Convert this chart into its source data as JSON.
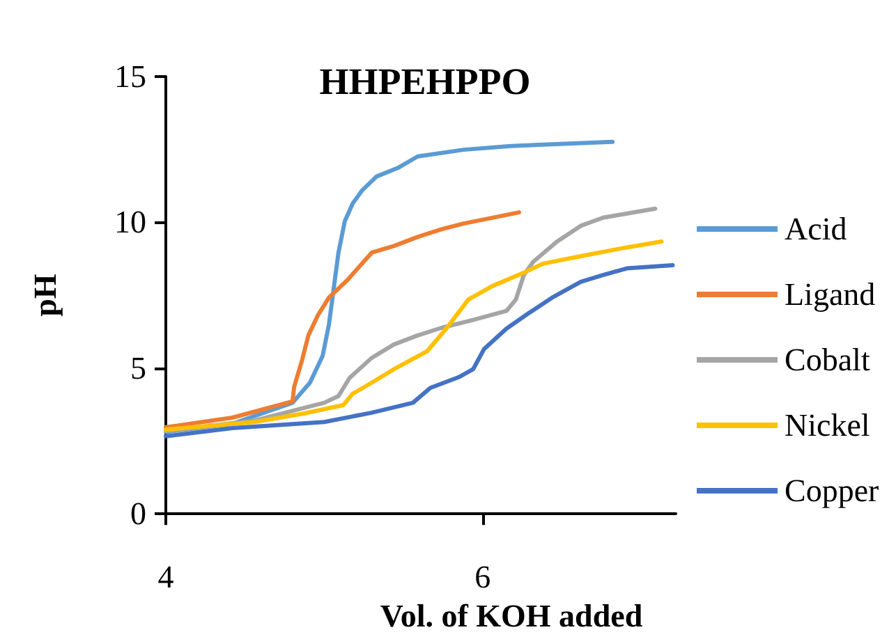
{
  "chart_data": {
    "type": "line",
    "title": "HHPEHPPO",
    "xlabel": "Vol. of KOH added",
    "ylabel": "pH",
    "xlim": [
      4,
      7.22
    ],
    "xticks": [
      4,
      6
    ],
    "ylim": [
      0,
      15
    ],
    "yticks": [
      0,
      5,
      10,
      15
    ],
    "grid": false,
    "legend": "right",
    "marker": "none",
    "line_style": "solid",
    "series": [
      {
        "name": "Acid",
        "color": "#5b9bd5",
        "x": [
          4,
          4.42,
          4.8,
          4.91,
          4.99,
          5.03,
          5.06,
          5.09,
          5.13,
          5.18,
          5.24,
          5.33,
          5.47,
          5.59,
          5.88,
          6.18,
          6.82
        ],
        "values": [
          2.81,
          3.09,
          3.81,
          4.5,
          5.42,
          6.5,
          7.73,
          8.96,
          10.04,
          10.65,
          11.1,
          11.57,
          11.88,
          12.26,
          12.49,
          12.62,
          12.76
        ]
      },
      {
        "name": "Ligand",
        "color": "#ed7d31",
        "x": [
          4,
          4.42,
          4.8,
          4.81,
          4.86,
          4.9,
          4.96,
          5.03,
          5.15,
          5.3,
          5.44,
          5.59,
          5.74,
          5.88,
          6.23
        ],
        "values": [
          2.97,
          3.3,
          3.86,
          4.35,
          5.27,
          6.12,
          6.81,
          7.42,
          8.04,
          8.96,
          9.19,
          9.5,
          9.76,
          9.96,
          10.34
        ]
      },
      {
        "name": "Cobalt",
        "color": "#a5a5a5",
        "x": [
          4,
          4.56,
          5.0,
          5.09,
          5.16,
          5.3,
          5.44,
          5.59,
          5.74,
          5.94,
          6.15,
          6.21,
          6.26,
          6.32,
          6.47,
          6.62,
          6.76,
          7.09
        ],
        "values": [
          2.84,
          3.2,
          3.81,
          4.04,
          4.66,
          5.35,
          5.81,
          6.12,
          6.38,
          6.65,
          6.96,
          7.35,
          8.19,
          8.65,
          9.34,
          9.88,
          10.16,
          10.47
        ]
      },
      {
        "name": "Nickel",
        "color": "#ffc000",
        "x": [
          4,
          4.56,
          4.86,
          5.12,
          5.18,
          5.3,
          5.44,
          5.65,
          5.77,
          5.91,
          6.06,
          6.26,
          6.38,
          6.62,
          6.91,
          7.13
        ],
        "values": [
          2.89,
          3.15,
          3.43,
          3.73,
          4.12,
          4.5,
          4.96,
          5.58,
          6.35,
          7.35,
          7.81,
          8.27,
          8.58,
          8.84,
          9.14,
          9.34
        ]
      },
      {
        "name": "Copper",
        "color": "#4472c4",
        "x": [
          4,
          4.42,
          5.0,
          5.3,
          5.56,
          5.67,
          5.85,
          5.94,
          6.01,
          6.15,
          6.29,
          6.44,
          6.62,
          6.76,
          6.91,
          7.2
        ],
        "values": [
          2.66,
          2.94,
          3.15,
          3.47,
          3.81,
          4.32,
          4.69,
          4.96,
          5.66,
          6.35,
          6.88,
          7.42,
          7.96,
          8.19,
          8.42,
          8.53
        ]
      }
    ]
  }
}
